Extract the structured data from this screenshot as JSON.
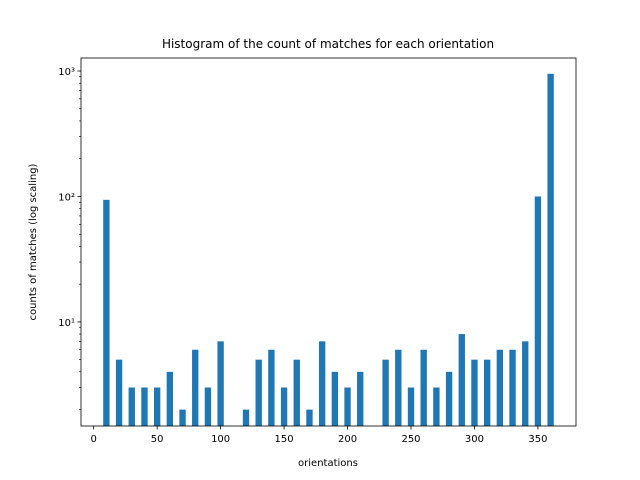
{
  "chart_data": {
    "type": "bar",
    "title": "Histogram of the count of matches for each orientation",
    "x_label": "orientations",
    "y_label": "counts of matches (log scaling)",
    "x": [
      10,
      20,
      30,
      40,
      50,
      60,
      70,
      80,
      90,
      100,
      110,
      120,
      130,
      140,
      150,
      160,
      170,
      180,
      190,
      200,
      210,
      220,
      230,
      240,
      250,
      260,
      270,
      280,
      290,
      300,
      310,
      320,
      330,
      340,
      350,
      360
    ],
    "values": [
      94,
      5,
      3,
      3,
      3,
      4,
      2,
      6,
      3,
      7,
      0,
      2,
      5,
      6,
      3,
      5,
      2,
      7,
      4,
      3,
      4,
      0,
      5,
      6,
      3,
      6,
      3,
      4,
      8,
      5,
      5,
      6,
      6,
      7,
      100,
      950
    ],
    "color": "#1f77b4",
    "xlim": [
      -10,
      380
    ],
    "xticks": [
      0,
      50,
      100,
      150,
      200,
      250,
      300,
      350
    ],
    "ylim": [
      1.48,
      1270
    ],
    "yticks": [
      {
        "value": 10,
        "label": "10¹"
      },
      {
        "value": 100,
        "label": "10²"
      },
      {
        "value": 1000,
        "label": "10³"
      }
    ],
    "y_log": true,
    "grid": false
  }
}
